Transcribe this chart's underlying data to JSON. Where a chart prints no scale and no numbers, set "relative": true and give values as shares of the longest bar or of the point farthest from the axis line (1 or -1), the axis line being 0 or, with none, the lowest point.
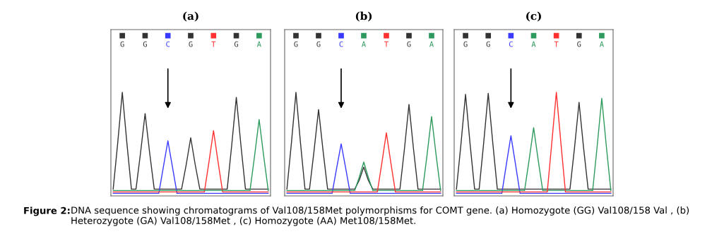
{
  "chart_data": [
    {
      "type": "line",
      "title": "(a)",
      "relative": true,
      "categories": [
        null,
        null,
        null,
        null,
        null,
        null,
        null,
        null,
        null,
        null,
        null,
        null,
        null,
        null,
        null,
        null,
        null,
        null,
        null,
        null,
        null,
        null,
        null,
        null,
        null,
        null,
        null,
        null,
        null,
        null,
        null,
        null,
        null,
        null,
        null
      ],
      "series": [
        {
          "color": "#333333",
          "values": [
            0.042,
            0.5,
            1,
            0.5,
            0.042,
            0.042,
            0.4,
            0.79,
            0.4,
            0.042,
            0.042,
            0.042,
            0.042,
            0.042,
            0.042,
            0.042,
            0.28,
            0.55,
            0.28,
            0.042,
            0.042,
            0.042,
            0.042,
            0.042,
            0.042,
            0.042,
            0.48,
            0.95,
            0.48,
            0.042,
            0.042,
            0.042,
            0.042,
            0.042,
            0.042
          ]
        },
        {
          "color": "#3a3aff",
          "values": [
            0,
            0,
            0,
            0,
            0,
            0,
            0,
            0,
            0,
            0,
            0,
            0.26,
            0.52,
            0.26,
            0,
            0,
            0,
            0,
            0,
            0,
            0,
            0,
            0,
            0,
            0,
            0,
            0,
            0,
            0,
            0,
            0,
            0,
            0,
            0,
            0
          ]
        },
        {
          "color": "#ff3030",
          "values": [
            0.014,
            0.014,
            0.014,
            0.014,
            0.014,
            0.014,
            0.014,
            0.014,
            0.014,
            0.014,
            0.014,
            0.014,
            0.014,
            0.014,
            0.014,
            0.014,
            0.014,
            0.014,
            0.014,
            0.014,
            0.014,
            0.31,
            0.62,
            0.31,
            0.014,
            0.014,
            0.014,
            0.014,
            0.014,
            0.014,
            0.014,
            0.014,
            0.014,
            0.014,
            0.014
          ]
        },
        {
          "color": "#2e9a5e",
          "values": [
            0.028,
            0.028,
            0.028,
            0.028,
            0.028,
            0.028,
            0.028,
            0.028,
            0.028,
            0.028,
            0.028,
            0.028,
            0.028,
            0.028,
            0.028,
            0.028,
            0.028,
            0.028,
            0.028,
            0.028,
            0.028,
            0.028,
            0.028,
            0.028,
            0.028,
            0.028,
            0.028,
            0.028,
            0.028,
            0.028,
            0.028,
            0.37,
            0.73,
            0.37,
            0.028
          ]
        }
      ],
      "annotations": [
        "G",
        "G",
        "C",
        "G",
        "T",
        "G",
        "A"
      ]
    },
    {
      "type": "line",
      "title": "(b)",
      "relative": true,
      "categories": [
        null,
        null,
        null,
        null,
        null,
        null,
        null,
        null,
        null,
        null,
        null,
        null,
        null,
        null,
        null,
        null,
        null,
        null,
        null,
        null,
        null,
        null,
        null,
        null,
        null,
        null,
        null,
        null,
        null,
        null,
        null,
        null,
        null,
        null,
        null
      ],
      "series": [
        {
          "color": "#333333",
          "values": [
            0.042,
            0.5,
            1,
            0.5,
            0.042,
            0.042,
            0.42,
            0.83,
            0.42,
            0.042,
            0.042,
            0.042,
            0.042,
            0.042,
            0.042,
            0.042,
            0.13,
            0.26,
            0.13,
            0.042,
            0.042,
            0.042,
            0.042,
            0.042,
            0.042,
            0.042,
            0.44,
            0.88,
            0.44,
            0.042,
            0.042,
            0.042,
            0.042,
            0.042,
            0.042
          ]
        },
        {
          "color": "#3a3aff",
          "values": [
            0,
            0,
            0,
            0,
            0,
            0,
            0,
            0,
            0,
            0,
            0,
            0.25,
            0.49,
            0.25,
            0,
            0,
            0,
            0,
            0,
            0,
            0,
            0,
            0,
            0,
            0,
            0,
            0,
            0,
            0,
            0,
            0,
            0,
            0,
            0,
            0
          ]
        },
        {
          "color": "#2e9a5e",
          "values": [
            0.028,
            0.028,
            0.028,
            0.028,
            0.028,
            0.028,
            0.028,
            0.028,
            0.028,
            0.028,
            0.028,
            0.028,
            0.028,
            0.028,
            0.028,
            0.028,
            0.16,
            0.31,
            0.16,
            0.028,
            0.028,
            0.028,
            0.028,
            0.028,
            0.028,
            0.028,
            0.028,
            0.028,
            0.028,
            0.028,
            0.028,
            0.38,
            0.76,
            0.38,
            0.028
          ]
        },
        {
          "color": "#ff3030",
          "values": [
            0.014,
            0.014,
            0.014,
            0.014,
            0.014,
            0.014,
            0.014,
            0.014,
            0.014,
            0.014,
            0.014,
            0.014,
            0.014,
            0.014,
            0.014,
            0.014,
            0.014,
            0.014,
            0.014,
            0.014,
            0.014,
            0.3,
            0.6,
            0.3,
            0.014,
            0.014,
            0.014,
            0.014,
            0.014,
            0.014,
            0.014,
            0.014,
            0.014,
            0.014,
            0.014
          ]
        }
      ],
      "annotations": [
        "G",
        "G",
        "C",
        "A",
        "T",
        "G",
        "A"
      ]
    },
    {
      "type": "line",
      "title": "(c)",
      "relative": true,
      "categories": [
        null,
        null,
        null,
        null,
        null,
        null,
        null,
        null,
        null,
        null,
        null,
        null,
        null,
        null,
        null,
        null,
        null,
        null,
        null,
        null,
        null,
        null,
        null,
        null,
        null,
        null,
        null,
        null,
        null,
        null,
        null,
        null,
        null,
        null,
        null
      ],
      "series": [
        {
          "color": "#333333",
          "values": [
            0.042,
            0.49,
            0.98,
            0.49,
            0.042,
            0.042,
            0.5,
            0.99,
            0.5,
            0.042,
            0.042,
            0.042,
            0.042,
            0.042,
            0.042,
            0.042,
            0.042,
            0.042,
            0.042,
            0.042,
            0.042,
            0.042,
            0.042,
            0.042,
            0.042,
            0.042,
            0.45,
            0.9,
            0.45,
            0.042,
            0.042,
            0.042,
            0.042,
            0.042,
            0.042
          ]
        },
        {
          "color": "#3a3aff",
          "values": [
            0,
            0,
            0,
            0,
            0,
            0,
            0,
            0,
            0,
            0,
            0,
            0.29,
            0.57,
            0.29,
            0,
            0,
            0,
            0,
            0,
            0,
            0,
            0,
            0,
            0,
            0,
            0,
            0,
            0,
            0,
            0,
            0,
            0,
            0,
            0,
            0
          ]
        },
        {
          "color": "#2e9a5e",
          "values": [
            0.028,
            0.028,
            0.028,
            0.028,
            0.028,
            0.028,
            0.028,
            0.028,
            0.028,
            0.028,
            0.028,
            0.028,
            0.028,
            0.028,
            0.028,
            0.028,
            0.33,
            0.65,
            0.33,
            0.028,
            0.028,
            0.028,
            0.028,
            0.028,
            0.028,
            0.028,
            0.028,
            0.028,
            0.028,
            0.028,
            0.028,
            0.47,
            0.94,
            0.47,
            0.028
          ]
        },
        {
          "color": "#ff3030",
          "values": [
            0.014,
            0.014,
            0.014,
            0.014,
            0.014,
            0.014,
            0.014,
            0.014,
            0.014,
            0.014,
            0.014,
            0.014,
            0.014,
            0.014,
            0.014,
            0.014,
            0.014,
            0.014,
            0.014,
            0.014,
            0.014,
            0.5,
            1,
            0.5,
            0.014,
            0.014,
            0.014,
            0.014,
            0.014,
            0.014,
            0.014,
            0.014,
            0.014,
            0.014,
            0.014
          ]
        }
      ],
      "annotations": [
        "G",
        "G",
        "C",
        "A",
        "T",
        "G",
        "A"
      ]
    },
    {
      "type": "other",
      "annotations": [
        "Figure 2:",
        "DNA sequence showing chromatograms of Val108/158Met polymorphisms for COMT gene. (a) Homozygote (GG) Val108/158 Val , (b) Heterozygote (GA) Val108/158Met , (c) Homozygote (AA) Met108/158Met."
      ]
    }
  ]
}
